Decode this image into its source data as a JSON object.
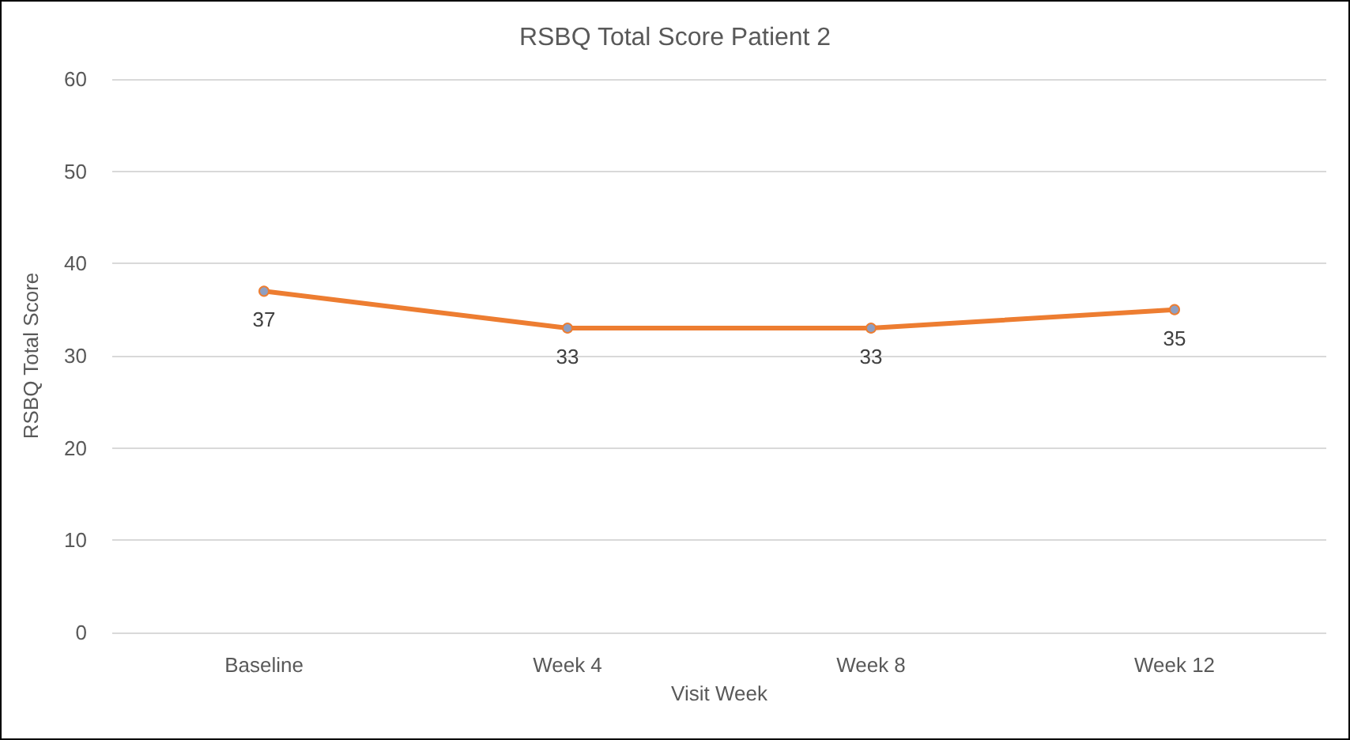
{
  "chart_data": {
    "type": "line",
    "title": "RSBQ Total Score Patient 2",
    "xlabel": "Visit Week",
    "ylabel": "RSBQ Total Score",
    "categories": [
      "Baseline",
      "Week 4",
      "Week 8",
      "Week 12"
    ],
    "series": [
      {
        "color": "#ed7d31",
        "values": [
          37,
          33,
          33,
          35
        ]
      }
    ],
    "ylim": [
      0,
      60
    ],
    "yticks": [
      0,
      10,
      20,
      30,
      40,
      50,
      60
    ],
    "grid": "y",
    "marker": "circle",
    "line_style": "solid",
    "data_labels": true
  }
}
